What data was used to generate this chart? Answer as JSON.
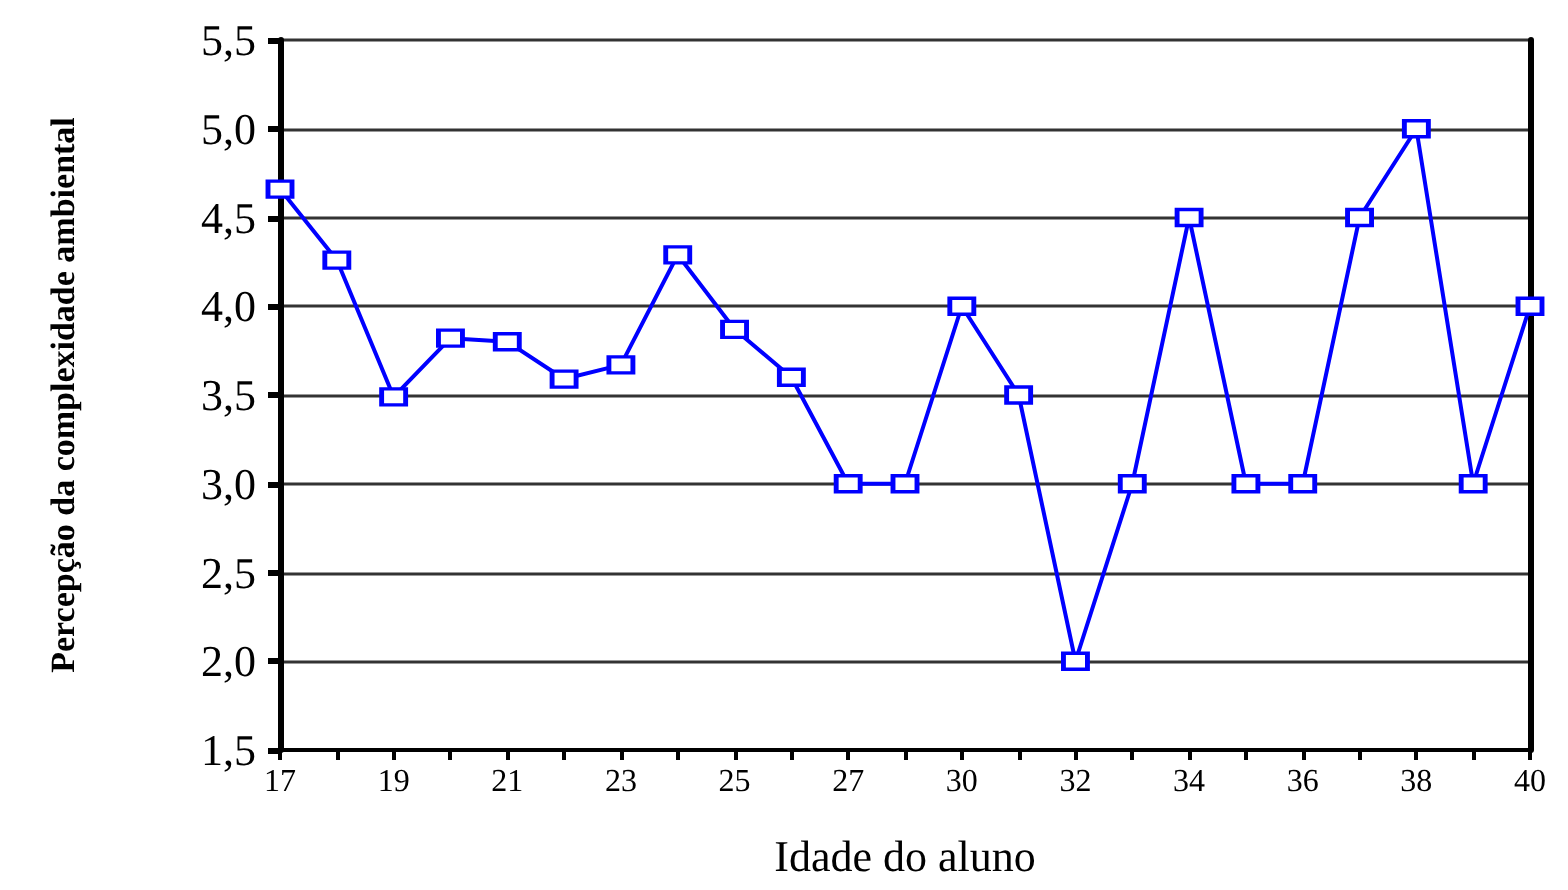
{
  "chart_data": {
    "type": "line",
    "xlabel": "Idade do aluno",
    "ylabel": "Percepção da complexidade ambiental",
    "categories": [
      "17",
      null,
      "19",
      null,
      "21",
      null,
      "23",
      null,
      "25",
      null,
      "27",
      null,
      "30",
      null,
      "32",
      null,
      "34",
      null,
      "36",
      null,
      "38",
      null,
      "40"
    ],
    "series": [
      {
        "color": "#0000ff",
        "values": [
          4.66,
          4.26,
          3.49,
          3.82,
          3.8,
          3.59,
          3.67,
          4.29,
          3.87,
          3.6,
          3.0,
          3.0,
          4.0,
          3.5,
          2.0,
          3.0,
          4.5,
          3.0,
          3.0,
          4.5,
          5.0,
          3.0,
          4.0
        ]
      }
    ],
    "ylim": [
      1.5,
      5.5
    ],
    "yticks": [
      {
        "value": 1.5,
        "label": "1,5"
      },
      {
        "value": 2,
        "label": "2,0"
      },
      {
        "value": 2.5,
        "label": "2,5"
      },
      {
        "value": 3,
        "label": "3,0"
      },
      {
        "value": 3.5,
        "label": "3,5"
      },
      {
        "value": 4,
        "label": "4,0"
      },
      {
        "value": 4.5,
        "label": "4,5"
      },
      {
        "value": 5,
        "label": "5,0"
      },
      {
        "value": 5.5,
        "label": "5,5"
      }
    ],
    "grid": "y",
    "marker": "square",
    "line_style": "solid"
  }
}
